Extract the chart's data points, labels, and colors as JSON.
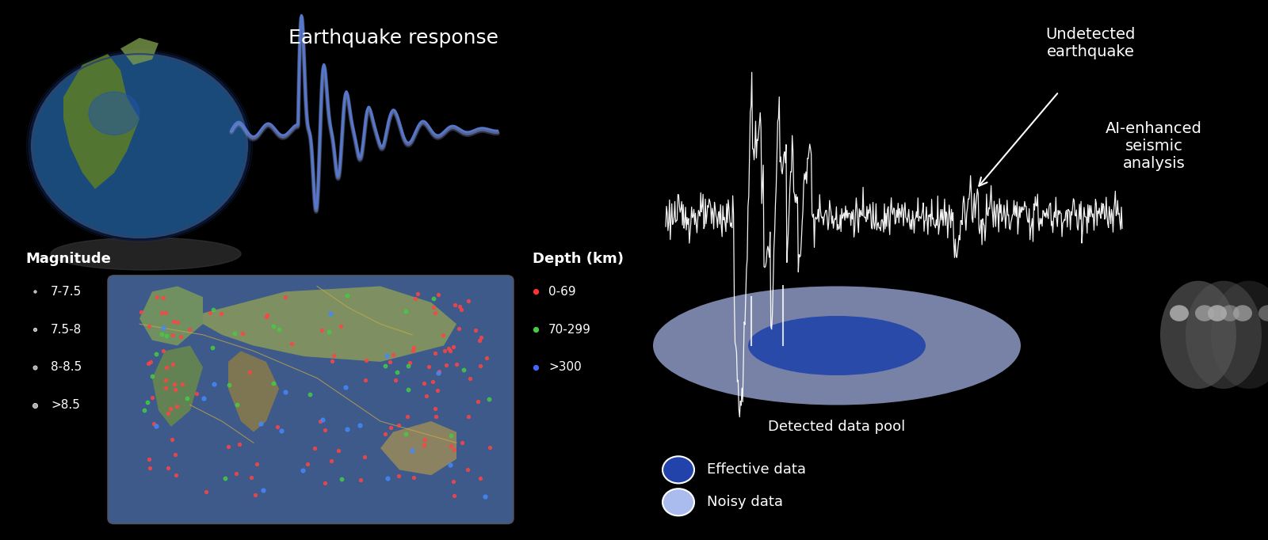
{
  "bg_color": "#000000",
  "left_panel": {
    "title_eq_response": "Earthquake response",
    "title_magnitude": "Magnitude",
    "title_depth": "Depth (km)",
    "magnitude_labels": [
      "7-7.5",
      "7.5-8",
      "8-8.5",
      ">8.5"
    ],
    "depth_labels": [
      "0-69",
      "70-299",
      ">300"
    ],
    "depth_colors": [
      "#ff3333",
      "#44cc44",
      "#4466ff"
    ],
    "text_color": "#ffffff"
  },
  "right_panel": {
    "label_undetected": "Undetected\nearthquake",
    "label_detected": "Detected data pool",
    "label_effective": "Effective data",
    "label_noisy": "Noisy data",
    "label_ai": "AI-enhanced\nseismic\nanalysis",
    "effective_color": "#2244aa",
    "noisy_color": "#aabbee",
    "text_color": "#ffffff"
  },
  "seismic_wave_color": "#5577cc",
  "seismic_wave_color2": "#8899dd",
  "white_signal_color": "#ffffff"
}
